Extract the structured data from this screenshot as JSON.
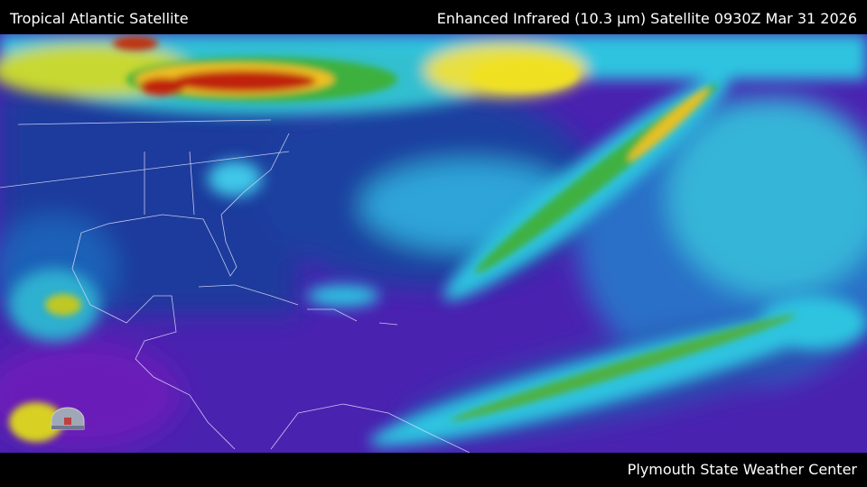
{
  "header": {
    "title": "Tropical Atlantic Satellite",
    "product": "Enhanced Infrared (10.3 µm) Satellite 0930Z Mar 31 2026"
  },
  "footer": {
    "credit": "Plymouth State Weather Center"
  },
  "map": {
    "region": "Tropical Atlantic",
    "colors": {
      "clear_warm": "#5a22b8",
      "low_cloud": "#1e3fa0",
      "mid_cloud": "#2fc4e0",
      "high_cloud": "#3cb03c",
      "cold_top": "#f0e020",
      "very_cold_top": "#c02010",
      "borders": "#e0e0ff"
    }
  }
}
